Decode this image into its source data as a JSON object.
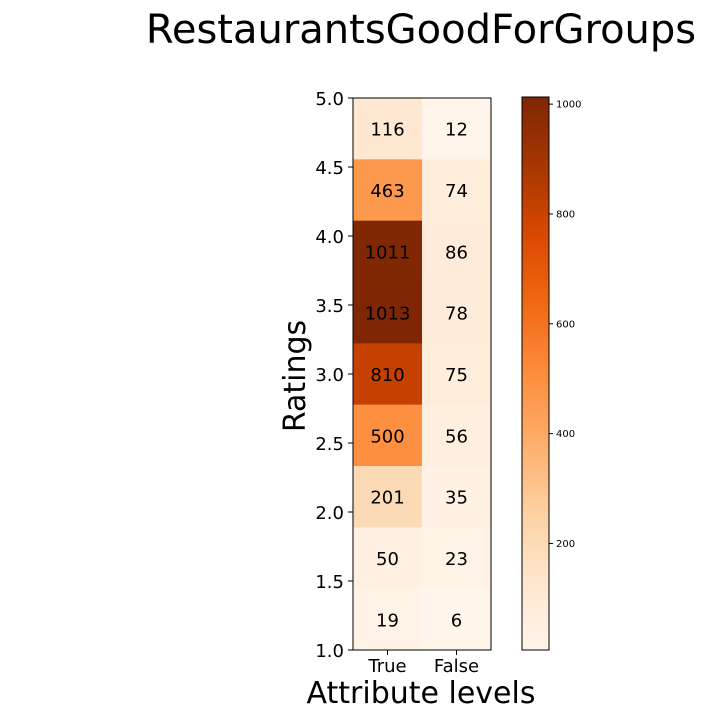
{
  "chart_data": {
    "type": "heatmap",
    "title": "RestaurantsGoodForGroups",
    "xlabel": "Attribute levels",
    "ylabel": "Ratings",
    "x_categories": [
      "True",
      "False"
    ],
    "y_ticks": [
      "1.0",
      "1.5",
      "2.0",
      "2.5",
      "3.0",
      "3.5",
      "4.0",
      "4.5",
      "5.0"
    ],
    "rows": [
      {
        "rating": 5.0,
        "values": [
          116,
          12
        ]
      },
      {
        "rating": 4.5,
        "values": [
          463,
          74
        ]
      },
      {
        "rating": 4.0,
        "values": [
          1011,
          86
        ]
      },
      {
        "rating": 3.5,
        "values": [
          1013,
          78
        ]
      },
      {
        "rating": 3.0,
        "values": [
          810,
          75
        ]
      },
      {
        "rating": 2.5,
        "values": [
          500,
          56
        ]
      },
      {
        "rating": 2.0,
        "values": [
          201,
          35
        ]
      },
      {
        "rating": 1.5,
        "values": [
          50,
          23
        ]
      },
      {
        "rating": 1.0,
        "values": [
          19,
          6
        ]
      }
    ],
    "colormap": "Oranges",
    "colorbar": {
      "min": 6,
      "max": 1013,
      "ticks": [
        200,
        400,
        600,
        800,
        1000
      ]
    },
    "grid": false
  }
}
